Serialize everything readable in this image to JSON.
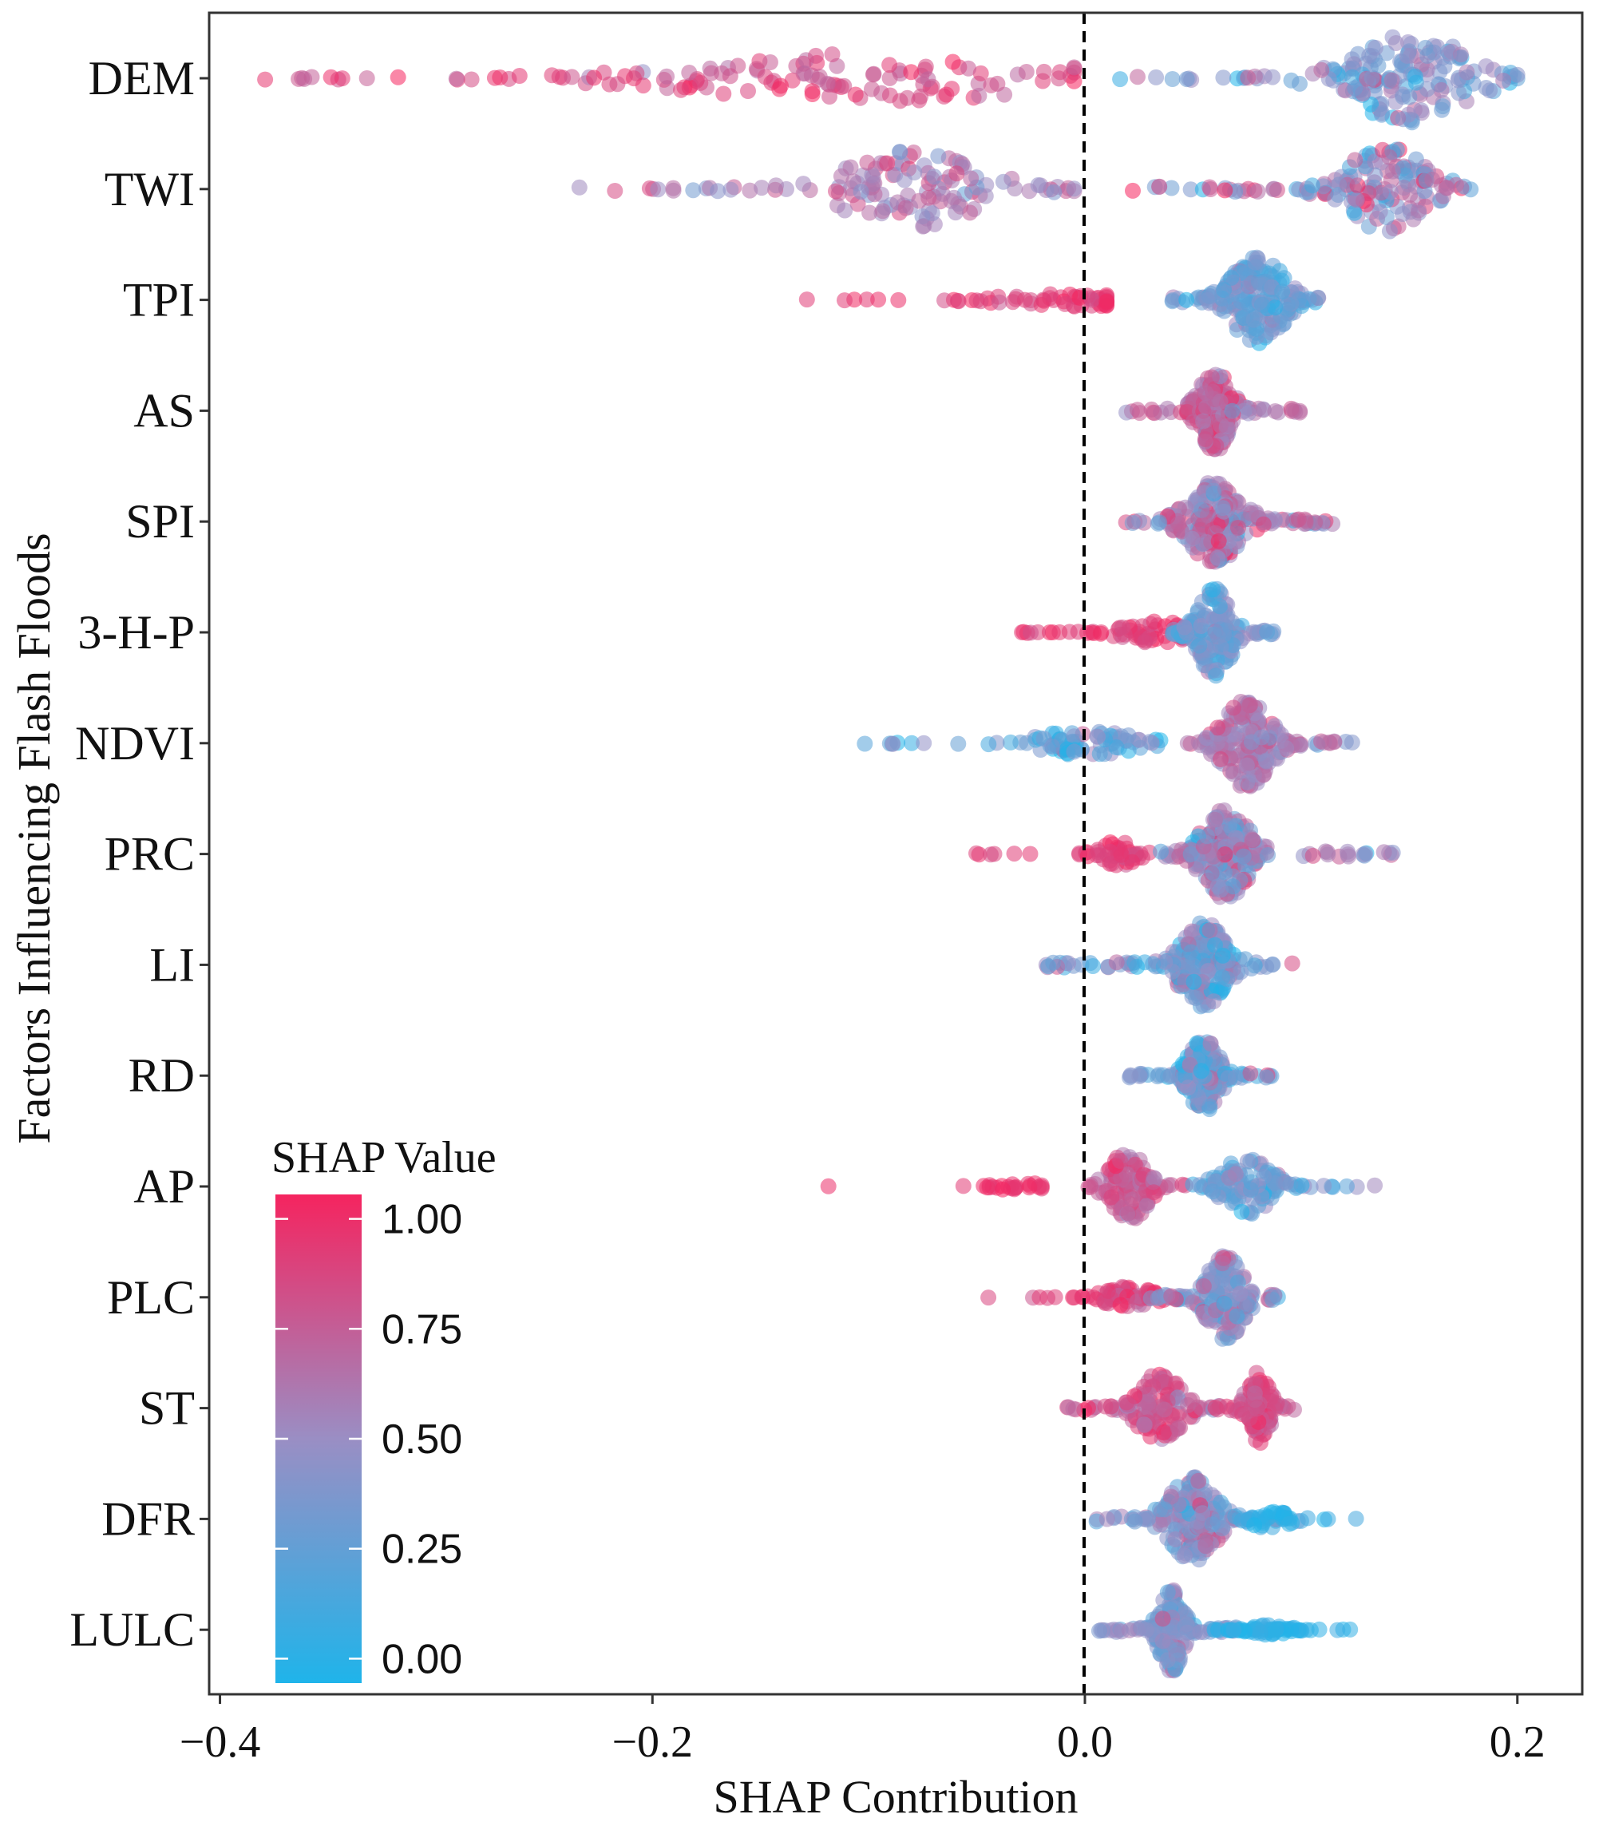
{
  "chart_data": {
    "type": "scatter",
    "subtype": "beeswarm",
    "title": "",
    "xlabel": "SHAP Contribution",
    "ylabel": "Factors Influencing Flash Floods",
    "xlim": [
      -0.405,
      0.23
    ],
    "xticks": [
      -0.4,
      -0.2,
      0.0,
      0.2
    ],
    "xtick_labels": [
      "−0.4",
      "−0.2",
      "0.0",
      "0.2"
    ],
    "reference_line": {
      "x": 0.0,
      "style": "dashed"
    },
    "grid": false,
    "colors": {
      "low": "#1fb4ea",
      "mid": "#9a8ec4",
      "high": "#f5245f"
    },
    "legend": {
      "title": "SHAP Value",
      "placement": "bottom-left",
      "tick_values": [
        1.0,
        0.75,
        0.5,
        0.25,
        0.0
      ],
      "tick_labels": [
        "1.00",
        "0.75",
        "0.50",
        "0.25",
        "0.00"
      ]
    },
    "factors": [
      {
        "name": "DEM",
        "parts": [
          {
            "min": -0.38,
            "max": -0.005,
            "peak": -0.1,
            "spread": 0.15,
            "n": 130,
            "cmean": 0.82,
            "csd": 0.1,
            "h": 0.55
          },
          {
            "min": 0.01,
            "max": 0.2,
            "peak": 0.15,
            "spread": 0.05,
            "n": 170,
            "cmean": 0.4,
            "csd": 0.18,
            "h": 1.0
          }
        ]
      },
      {
        "name": "TWI",
        "parts": [
          {
            "min": -0.245,
            "max": -0.005,
            "peak": -0.08,
            "spread": 0.06,
            "n": 130,
            "cmean": 0.6,
            "csd": 0.14,
            "h": 0.85
          },
          {
            "min": 0.02,
            "max": 0.18,
            "peak": 0.14,
            "spread": 0.035,
            "n": 150,
            "cmean": 0.55,
            "csd": 0.25,
            "h": 0.95
          }
        ]
      },
      {
        "name": "TPI",
        "parts": [
          {
            "min": -0.145,
            "max": 0.01,
            "peak": -0.005,
            "spread": 0.06,
            "n": 60,
            "cmean": 0.9,
            "csd": 0.07,
            "h": 0.15
          },
          {
            "min": 0.04,
            "max": 0.11,
            "peak": 0.08,
            "spread": 0.022,
            "n": 200,
            "cmean": 0.32,
            "csd": 0.14,
            "h": 1.0
          }
        ]
      },
      {
        "name": "AS",
        "parts": [
          {
            "min": 0.01,
            "max": 0.1,
            "peak": 0.06,
            "spread": 0.014,
            "n": 180,
            "cmean": 0.7,
            "csd": 0.15,
            "h": 0.9
          }
        ]
      },
      {
        "name": "SPI",
        "parts": [
          {
            "min": 0.015,
            "max": 0.12,
            "peak": 0.06,
            "spread": 0.022,
            "n": 230,
            "cmean": 0.58,
            "csd": 0.2,
            "h": 0.95
          }
        ]
      },
      {
        "name": "3-H-P",
        "parts": [
          {
            "min": -0.04,
            "max": 0.045,
            "peak": 0.035,
            "spread": 0.03,
            "n": 60,
            "cmean": 0.9,
            "csd": 0.08,
            "h": 0.25
          },
          {
            "min": 0.04,
            "max": 0.09,
            "peak": 0.06,
            "spread": 0.014,
            "n": 170,
            "cmean": 0.35,
            "csd": 0.14,
            "h": 1.0
          }
        ]
      },
      {
        "name": "NDVI",
        "parts": [
          {
            "min": -0.108,
            "max": 0.04,
            "peak": 0.0,
            "spread": 0.04,
            "n": 80,
            "cmean": 0.25,
            "csd": 0.18,
            "h": 0.3
          },
          {
            "min": 0.045,
            "max": 0.125,
            "peak": 0.075,
            "spread": 0.02,
            "n": 200,
            "cmean": 0.6,
            "csd": 0.14,
            "h": 1.0
          }
        ]
      },
      {
        "name": "PRC",
        "parts": [
          {
            "min": -0.052,
            "max": 0.03,
            "peak": 0.015,
            "spread": 0.015,
            "n": 50,
            "cmean": 0.9,
            "csd": 0.07,
            "h": 0.3
          },
          {
            "min": 0.035,
            "max": 0.148,
            "peak": 0.065,
            "spread": 0.02,
            "n": 210,
            "cmean": 0.5,
            "csd": 0.2,
            "h": 1.0
          }
        ]
      },
      {
        "name": "LI",
        "parts": [
          {
            "min": -0.018,
            "max": 0.1,
            "peak": 0.055,
            "spread": 0.02,
            "n": 220,
            "cmean": 0.35,
            "csd": 0.2,
            "h": 0.95
          }
        ]
      },
      {
        "name": "RD",
        "parts": [
          {
            "min": 0.02,
            "max": 0.09,
            "peak": 0.055,
            "spread": 0.013,
            "n": 180,
            "cmean": 0.3,
            "csd": 0.22,
            "h": 0.85
          }
        ]
      },
      {
        "name": "AP",
        "parts": [
          {
            "min": -0.14,
            "max": -0.02,
            "peak": -0.03,
            "spread": 0.04,
            "n": 25,
            "cmean": 0.95,
            "csd": 0.04,
            "h": 0.08
          },
          {
            "min": 0.0,
            "max": 0.05,
            "peak": 0.02,
            "spread": 0.015,
            "n": 110,
            "cmean": 0.75,
            "csd": 0.12,
            "h": 0.85
          },
          {
            "min": 0.05,
            "max": 0.138,
            "peak": 0.075,
            "spread": 0.022,
            "n": 110,
            "cmean": 0.3,
            "csd": 0.15,
            "h": 0.65
          }
        ]
      },
      {
        "name": "PLC",
        "parts": [
          {
            "min": -0.047,
            "max": 0.04,
            "peak": 0.02,
            "spread": 0.02,
            "n": 70,
            "cmean": 0.85,
            "csd": 0.1,
            "h": 0.25
          },
          {
            "min": 0.03,
            "max": 0.09,
            "peak": 0.065,
            "spread": 0.015,
            "n": 170,
            "cmean": 0.45,
            "csd": 0.15,
            "h": 1.0
          }
        ]
      },
      {
        "name": "ST",
        "parts": [
          {
            "min": -0.01,
            "max": 0.1,
            "peak": 0.035,
            "spread": 0.018,
            "n": 140,
            "cmean": 0.75,
            "csd": 0.12,
            "h": 0.8
          },
          {
            "min": 0.06,
            "max": 0.1,
            "peak": 0.08,
            "spread": 0.01,
            "n": 90,
            "cmean": 0.82,
            "csd": 0.1,
            "h": 0.8
          }
        ]
      },
      {
        "name": "DFR",
        "parts": [
          {
            "min": 0.005,
            "max": 0.1,
            "peak": 0.05,
            "spread": 0.02,
            "n": 190,
            "cmean": 0.45,
            "csd": 0.2,
            "h": 0.95
          },
          {
            "min": 0.06,
            "max": 0.138,
            "peak": 0.085,
            "spread": 0.02,
            "n": 40,
            "cmean": 0.08,
            "csd": 0.06,
            "h": 0.2
          }
        ]
      },
      {
        "name": "LULC",
        "parts": [
          {
            "min": 0.005,
            "max": 0.07,
            "peak": 0.04,
            "spread": 0.01,
            "n": 180,
            "cmean": 0.4,
            "csd": 0.13,
            "h": 0.95
          },
          {
            "min": 0.06,
            "max": 0.13,
            "peak": 0.085,
            "spread": 0.017,
            "n": 60,
            "cmean": 0.05,
            "csd": 0.04,
            "h": 0.12
          }
        ]
      }
    ]
  }
}
